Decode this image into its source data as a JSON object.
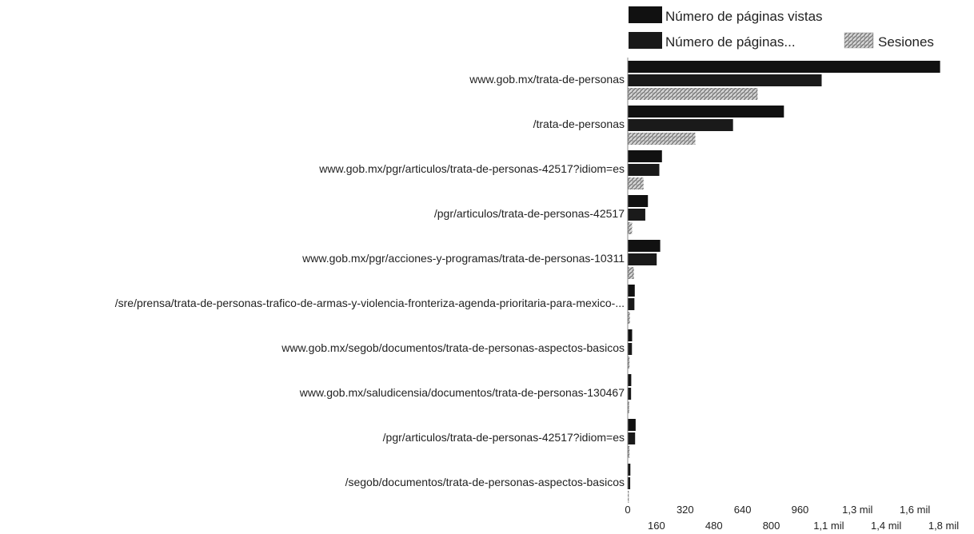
{
  "chart_data": {
    "type": "bar",
    "orientation": "horizontal",
    "categories": [
      "www.gob.mx/trata-de-personas",
      "/trata-de-personas",
      "www.gob.mx/pgr/articulos/trata-de-personas-42517?idiom=es",
      "/pgr/articulos/trata-de-personas-42517",
      "www.gob.mx/pgr/acciones-y-programas/trata-de-personas-10311",
      "/sre/prensa/trata-de-personas-trafico-de-armas-y-violencia-fronteriza-agenda-prioritaria-para-mexico-...",
      "www.gob.mx/segob/documentos/trata-de-personas-aspectos-basicos",
      "www.gob.mx/saludicensia/documentos/trata-de-personas-130467",
      "/pgr/articulos/trata-de-personas-42517?idiom=es",
      "/segob/documentos/trata-de-personas-aspectos-basicos"
    ],
    "series": [
      {
        "name": "Número de páginas vistas",
        "color": "#111111",
        "pattern": "solid",
        "values": [
          1780,
          890,
          195,
          115,
          185,
          40,
          25,
          20,
          45,
          15
        ]
      },
      {
        "name": "Número de páginas...",
        "color": "#1a1a1a",
        "pattern": "solid",
        "values": [
          1105,
          600,
          180,
          100,
          165,
          38,
          24,
          19,
          42,
          14
        ]
      },
      {
        "name": "Sesiones",
        "color": "#bdbdbd",
        "pattern": "hatched",
        "values": [
          740,
          385,
          90,
          25,
          35,
          12,
          10,
          8,
          10,
          6
        ]
      }
    ],
    "x_ticks": [
      "0",
      "160",
      "320",
      "480",
      "640",
      "800",
      "960",
      "1,1 mil",
      "1,3 mil",
      "1,4 mil",
      "1,6 mil",
      "1,8 mil"
    ],
    "xlim": [
      0,
      1800
    ],
    "grid": false,
    "legend_position": "top-right"
  }
}
